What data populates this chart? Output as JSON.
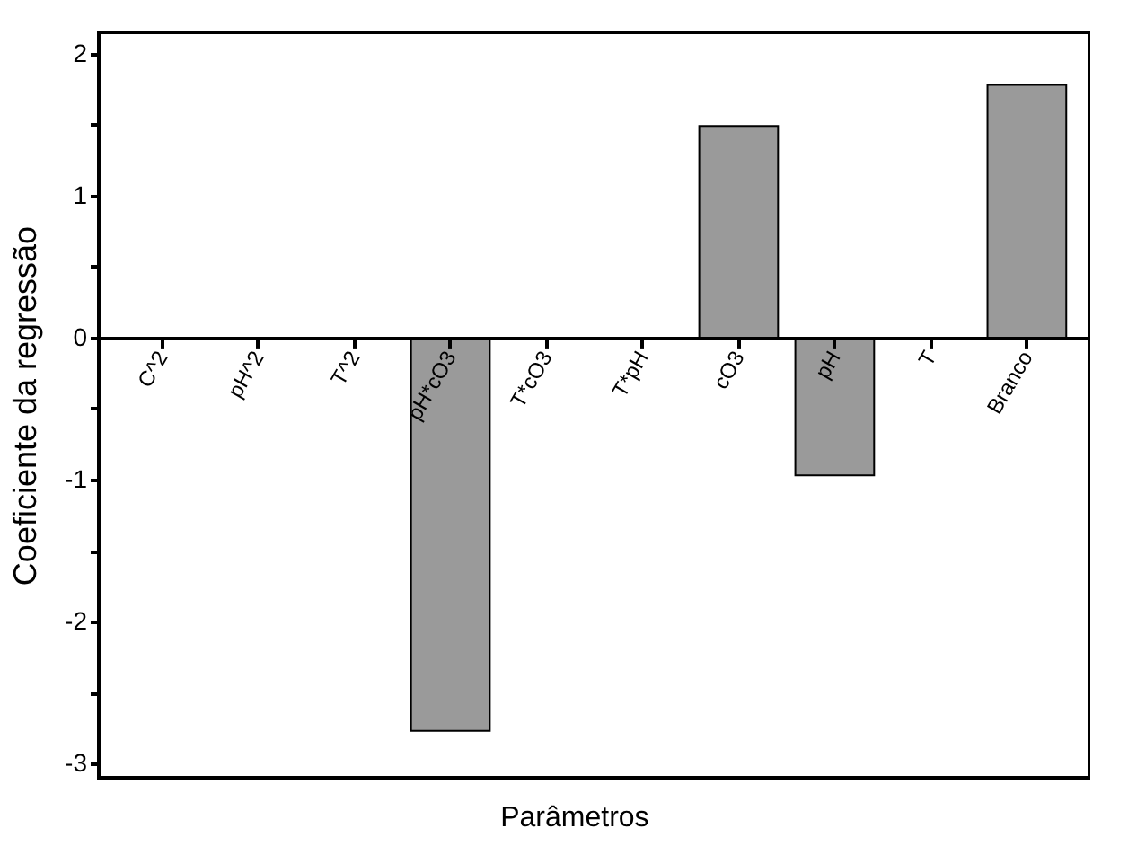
{
  "chart_data": {
    "type": "bar",
    "xlabel": "Parâmetros",
    "ylabel": "Coeficiente da regressão",
    "categories": [
      "C^2",
      "pH^2",
      "T^2",
      "pH*cO3",
      "T*cO3",
      "T*pH",
      "cO3",
      "pH",
      "T",
      "Branco"
    ],
    "values": [
      null,
      null,
      null,
      -2.77,
      null,
      null,
      1.49,
      -0.97,
      null,
      1.78
    ],
    "color": "#9a9a9a",
    "ylim": [
      -3.1,
      2.15
    ],
    "yticks": [
      -3,
      {
        "value": -2.5,
        "label": null
      },
      -2,
      {
        "value": -1.5,
        "label": null
      },
      -1,
      {
        "value": -0.5,
        "label": null
      },
      0,
      {
        "value": 0.5,
        "label": null
      },
      1,
      {
        "value": 1.5,
        "label": null
      },
      2
    ],
    "grid": false
  }
}
